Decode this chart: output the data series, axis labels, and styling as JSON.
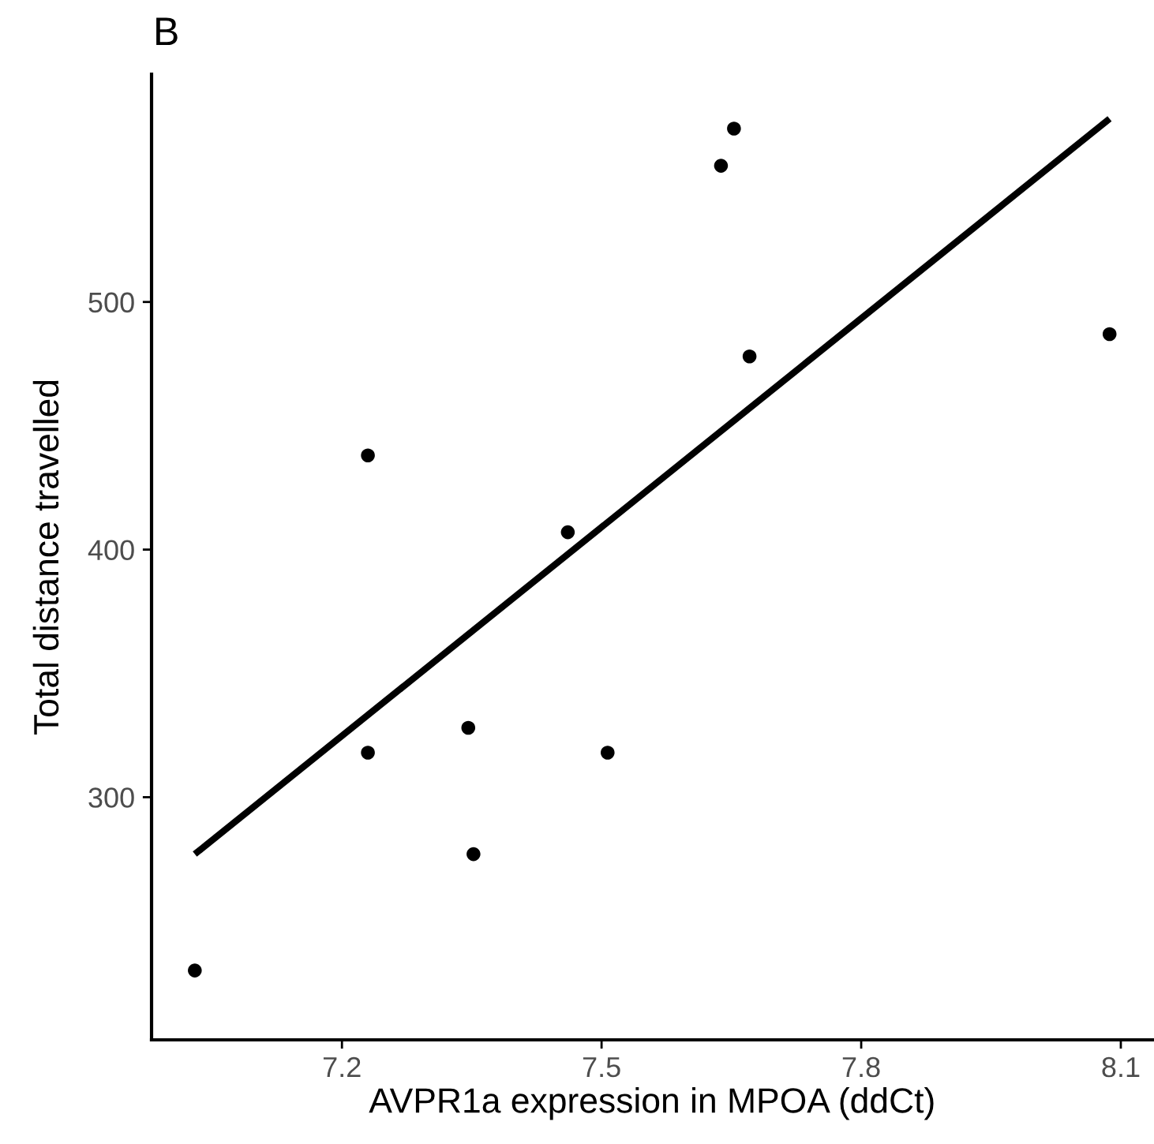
{
  "chart_data": {
    "type": "scatter",
    "title": "B",
    "xlabel": "AVPR1a expression in MPOA (ddCt)",
    "ylabel": "Total distance travelled",
    "xlim": [
      6.98,
      8.137
    ],
    "ylim": [
      202,
      592
    ],
    "xticks": [
      7.2,
      7.5,
      7.8,
      8.1
    ],
    "yticks": [
      300,
      400,
      500
    ],
    "grid": false,
    "series": [
      {
        "marker": "circle",
        "color": "#000000",
        "x": [
          7.03,
          7.23,
          7.23,
          7.346,
          7.352,
          7.461,
          7.507,
          7.638,
          7.653,
          7.671,
          8.087
        ],
        "values": [
          230,
          438,
          318,
          328,
          277,
          407,
          318,
          555,
          570,
          478,
          487
        ]
      },
      {
        "type": "line",
        "color": "#000000",
        "x": [
          7.03,
          8.087
        ],
        "values": [
          277,
          574
        ]
      }
    ]
  }
}
